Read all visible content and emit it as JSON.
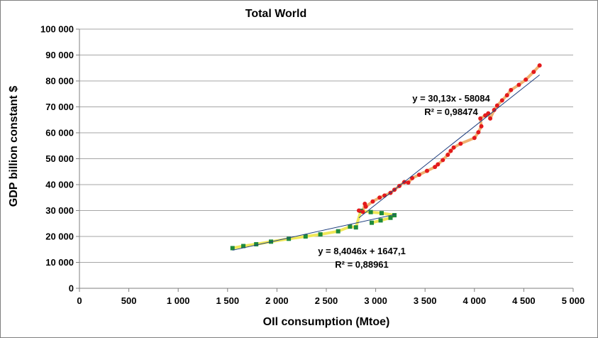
{
  "chart_data": {
    "type": "scatter",
    "title": "Total World",
    "xlabel": "OIl consumption (Mtoe)",
    "ylabel": "GDP billion constant $",
    "xlim": [
      0,
      5000
    ],
    "ylim": [
      0,
      100000
    ],
    "x_ticks": [
      "0",
      "500",
      "1 000",
      "1 500",
      "2 000",
      "2 500",
      "3 000",
      "3 500",
      "4 000",
      "4 500",
      "5 000"
    ],
    "y_ticks": [
      "0",
      "10 000",
      "20 000",
      "30 000",
      "40 000",
      "50 000",
      "60 000",
      "70 000",
      "80 000",
      "90 000",
      "100 000"
    ],
    "grid": "horizontal",
    "legend": "none",
    "series": [
      {
        "marker": "square",
        "color": "#1e8a3c",
        "line_color": "#f0e85a",
        "points": [
          [
            1550,
            15500
          ],
          [
            1660,
            16300
          ],
          [
            1790,
            17000
          ],
          [
            1940,
            18000
          ],
          [
            2120,
            19100
          ],
          [
            2290,
            20000
          ],
          [
            2440,
            20800
          ],
          [
            2620,
            22000
          ],
          [
            2740,
            23800
          ],
          [
            2800,
            23500
          ],
          [
            2850,
            29900
          ],
          [
            2950,
            29400
          ],
          [
            3060,
            29000
          ],
          [
            3190,
            28200
          ],
          [
            3150,
            27200
          ],
          [
            3050,
            26200
          ],
          [
            2960,
            25300
          ]
        ],
        "trendline": {
          "slope": 8.4046,
          "intercept": 1647.1,
          "x_range": [
            1550,
            3200
          ],
          "color": "#1f3f7f"
        },
        "equation": "y = 8,4046x + 1647,1",
        "r_squared": "R² = 0,88961"
      },
      {
        "marker": "circle",
        "color": "#e31a1c",
        "line_color": "#f0b070",
        "points": [
          [
            2830,
            30000
          ],
          [
            2870,
            29500
          ],
          [
            2890,
            32600
          ],
          [
            2900,
            31500
          ],
          [
            2970,
            33500
          ],
          [
            3040,
            35000
          ],
          [
            3090,
            35800
          ],
          [
            3150,
            36800
          ],
          [
            3190,
            38000
          ],
          [
            3240,
            39500
          ],
          [
            3290,
            41000
          ],
          [
            3330,
            40800
          ],
          [
            3370,
            42500
          ],
          [
            3440,
            43800
          ],
          [
            3520,
            45300
          ],
          [
            3600,
            46800
          ],
          [
            3630,
            47800
          ],
          [
            3680,
            49500
          ],
          [
            3730,
            51500
          ],
          [
            3760,
            53000
          ],
          [
            3790,
            54300
          ],
          [
            3860,
            55800
          ],
          [
            4000,
            58000
          ],
          [
            4040,
            60200
          ],
          [
            4070,
            62500
          ],
          [
            4060,
            65500
          ],
          [
            4110,
            66700
          ],
          [
            4140,
            67500
          ],
          [
            4160,
            65500
          ],
          [
            4200,
            68800
          ],
          [
            4230,
            70500
          ],
          [
            4280,
            72500
          ],
          [
            4330,
            74500
          ],
          [
            4370,
            76500
          ],
          [
            4450,
            78500
          ],
          [
            4520,
            80500
          ],
          [
            4600,
            83500
          ],
          [
            4660,
            86000
          ]
        ],
        "trendline": {
          "slope": 30.13,
          "intercept": -58084,
          "x_range": [
            2830,
            4660
          ],
          "color": "#1f3f7f"
        },
        "equation": "y = 30,13x - 58084",
        "r_squared": "R² = 0,98474"
      }
    ]
  }
}
